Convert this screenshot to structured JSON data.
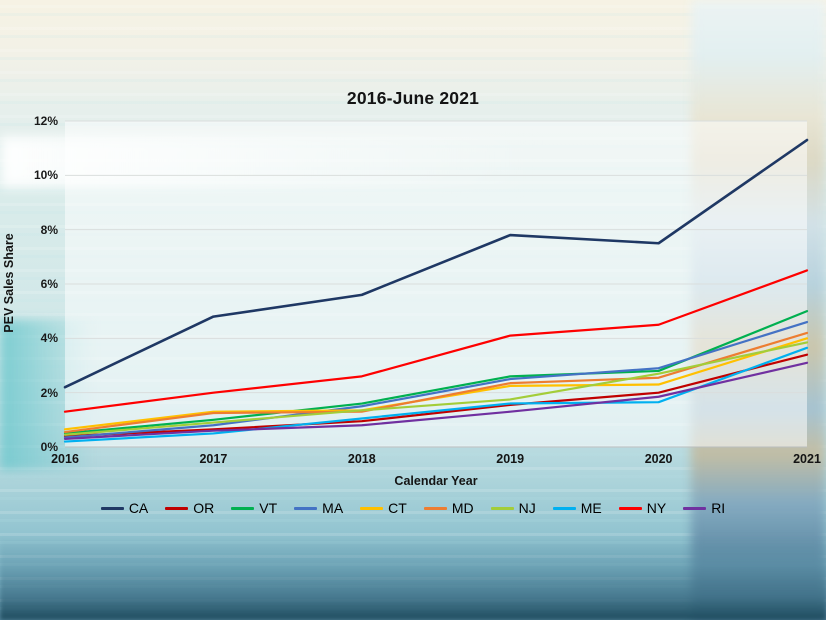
{
  "title": "2016-June 2021",
  "chart_data": {
    "type": "line",
    "title": "2016-June 2021",
    "xlabel": "Calendar Year",
    "ylabel": "PEV Sales Share",
    "x": [
      2016,
      2017,
      2018,
      2019,
      2020,
      2021
    ],
    "x_tick_labels": [
      "2016",
      "2017",
      "2018",
      "2019",
      "2020",
      "2021"
    ],
    "y_tick_labels": [
      "0%",
      "2%",
      "4%",
      "6%",
      "8%",
      "10%",
      "12%"
    ],
    "ylim": [
      0,
      12
    ],
    "grid": "horizontal",
    "legend_position": "bottom",
    "series": [
      {
        "name": "CA",
        "color": "#1f3864",
        "values": [
          2.2,
          4.8,
          5.6,
          7.8,
          7.5,
          11.3
        ]
      },
      {
        "name": "OR",
        "color": "#c00000",
        "values": [
          0.4,
          0.65,
          0.95,
          1.55,
          2.0,
          3.4
        ]
      },
      {
        "name": "VT",
        "color": "#00b050",
        "values": [
          0.5,
          1.0,
          1.6,
          2.6,
          2.8,
          5.0
        ]
      },
      {
        "name": "MA",
        "color": "#4472c4",
        "values": [
          0.35,
          0.8,
          1.5,
          2.5,
          2.9,
          4.6
        ]
      },
      {
        "name": "CT",
        "color": "#ffc000",
        "values": [
          0.65,
          1.3,
          1.35,
          2.25,
          2.3,
          4.0
        ]
      },
      {
        "name": "MD",
        "color": "#ed7d31",
        "values": [
          0.55,
          1.25,
          1.3,
          2.35,
          2.55,
          4.2
        ]
      },
      {
        "name": "NJ",
        "color": "#a3cd39",
        "values": [
          0.45,
          0.9,
          1.35,
          1.75,
          2.7,
          3.85
        ]
      },
      {
        "name": "ME",
        "color": "#00b0f0",
        "values": [
          0.2,
          0.5,
          1.05,
          1.6,
          1.65,
          3.65
        ]
      },
      {
        "name": "NY",
        "color": "#fe0000",
        "values": [
          1.3,
          2.0,
          2.6,
          4.1,
          4.5,
          6.5
        ]
      },
      {
        "name": "RI",
        "color": "#7030a0",
        "values": [
          0.3,
          0.6,
          0.8,
          1.3,
          1.85,
          3.1
        ]
      }
    ]
  }
}
